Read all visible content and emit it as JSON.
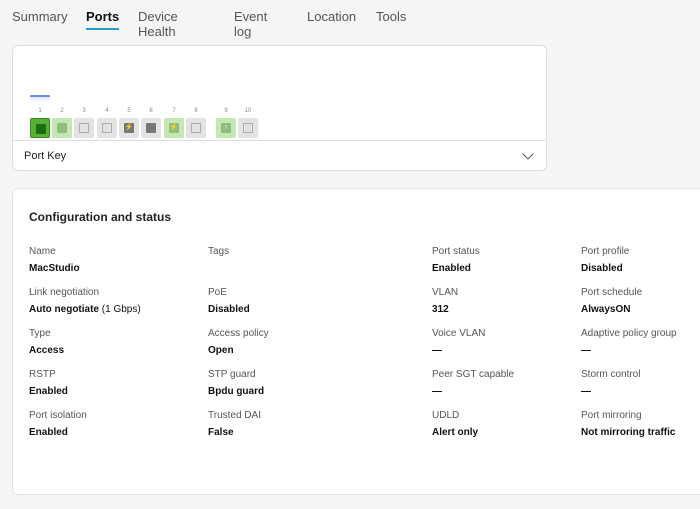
{
  "tabs": [
    {
      "label": "Summary"
    },
    {
      "label": "Ports",
      "active": true
    },
    {
      "label": "Device Health"
    },
    {
      "label": "Event log"
    },
    {
      "label": "Location"
    },
    {
      "label": "Tools"
    }
  ],
  "ports": {
    "items": [
      {
        "number": "1",
        "state": "connected-selected",
        "color": "#1e6b12",
        "border": "#57b030",
        "icon": ""
      },
      {
        "number": "2",
        "state": "connected",
        "color": "#8fbf7a",
        "border": "#c5e6b5",
        "icon": ""
      },
      {
        "number": "3",
        "state": "empty",
        "color": "#e3e3e3",
        "border": "#e3e3e3",
        "icon": ""
      },
      {
        "number": "4",
        "state": "empty",
        "color": "#e3e3e3",
        "border": "#e3e3e3",
        "icon": ""
      },
      {
        "number": "5",
        "state": "disabled-poe",
        "color": "#777777",
        "border": "#e3e3e3",
        "icon": "⚡"
      },
      {
        "number": "6",
        "state": "disabled",
        "color": "#777777",
        "border": "#e3e3e3",
        "icon": ""
      },
      {
        "number": "7",
        "state": "connected-poe",
        "color": "#8fbf7a",
        "border": "#c5e6b5",
        "icon": "⚡"
      },
      {
        "number": "8",
        "state": "empty",
        "color": "#e3e3e3",
        "border": "#e3e3e3",
        "icon": ""
      },
      {
        "number": "9",
        "state": "uplink",
        "color": "#8fbf7a",
        "border": "#c5e6b5",
        "icon": "↑"
      },
      {
        "number": "10",
        "state": "empty-sfp",
        "color": "#e3e3e3",
        "border": "#e3e3e3",
        "icon": ""
      }
    ],
    "port_key": "Port Key"
  },
  "config": {
    "title": "Configuration and status",
    "fields": [
      {
        "label": "Name",
        "value": "MacStudio"
      },
      {
        "label": "Tags",
        "value": ""
      },
      {
        "label": "Port status",
        "value": "Enabled"
      },
      {
        "label": "Port profile",
        "value": "Disabled"
      },
      {
        "label": "Link negotiation",
        "value": "Auto negotiate",
        "extra": " (1 Gbps)"
      },
      {
        "label": "PoE",
        "value": "Disabled"
      },
      {
        "label": "VLAN",
        "value": "312"
      },
      {
        "label": "Port schedule",
        "value": "AlwaysON"
      },
      {
        "label": "Type",
        "value": "Access"
      },
      {
        "label": "Access policy",
        "value": "Open"
      },
      {
        "label": "Voice VLAN",
        "value": "—"
      },
      {
        "label": "Adaptive policy group",
        "value": "—"
      },
      {
        "label": "RSTP",
        "value": "Enabled"
      },
      {
        "label": "STP guard",
        "value": "Bpdu guard"
      },
      {
        "label": "Peer SGT capable",
        "value": "—"
      },
      {
        "label": "Storm control",
        "value": "—"
      },
      {
        "label": "Port isolation",
        "value": "Enabled"
      },
      {
        "label": "Trusted DAI",
        "value": "False"
      },
      {
        "label": "UDLD",
        "value": "Alert only"
      },
      {
        "label": "Port mirroring",
        "value": "Not mirroring traffic"
      }
    ]
  }
}
